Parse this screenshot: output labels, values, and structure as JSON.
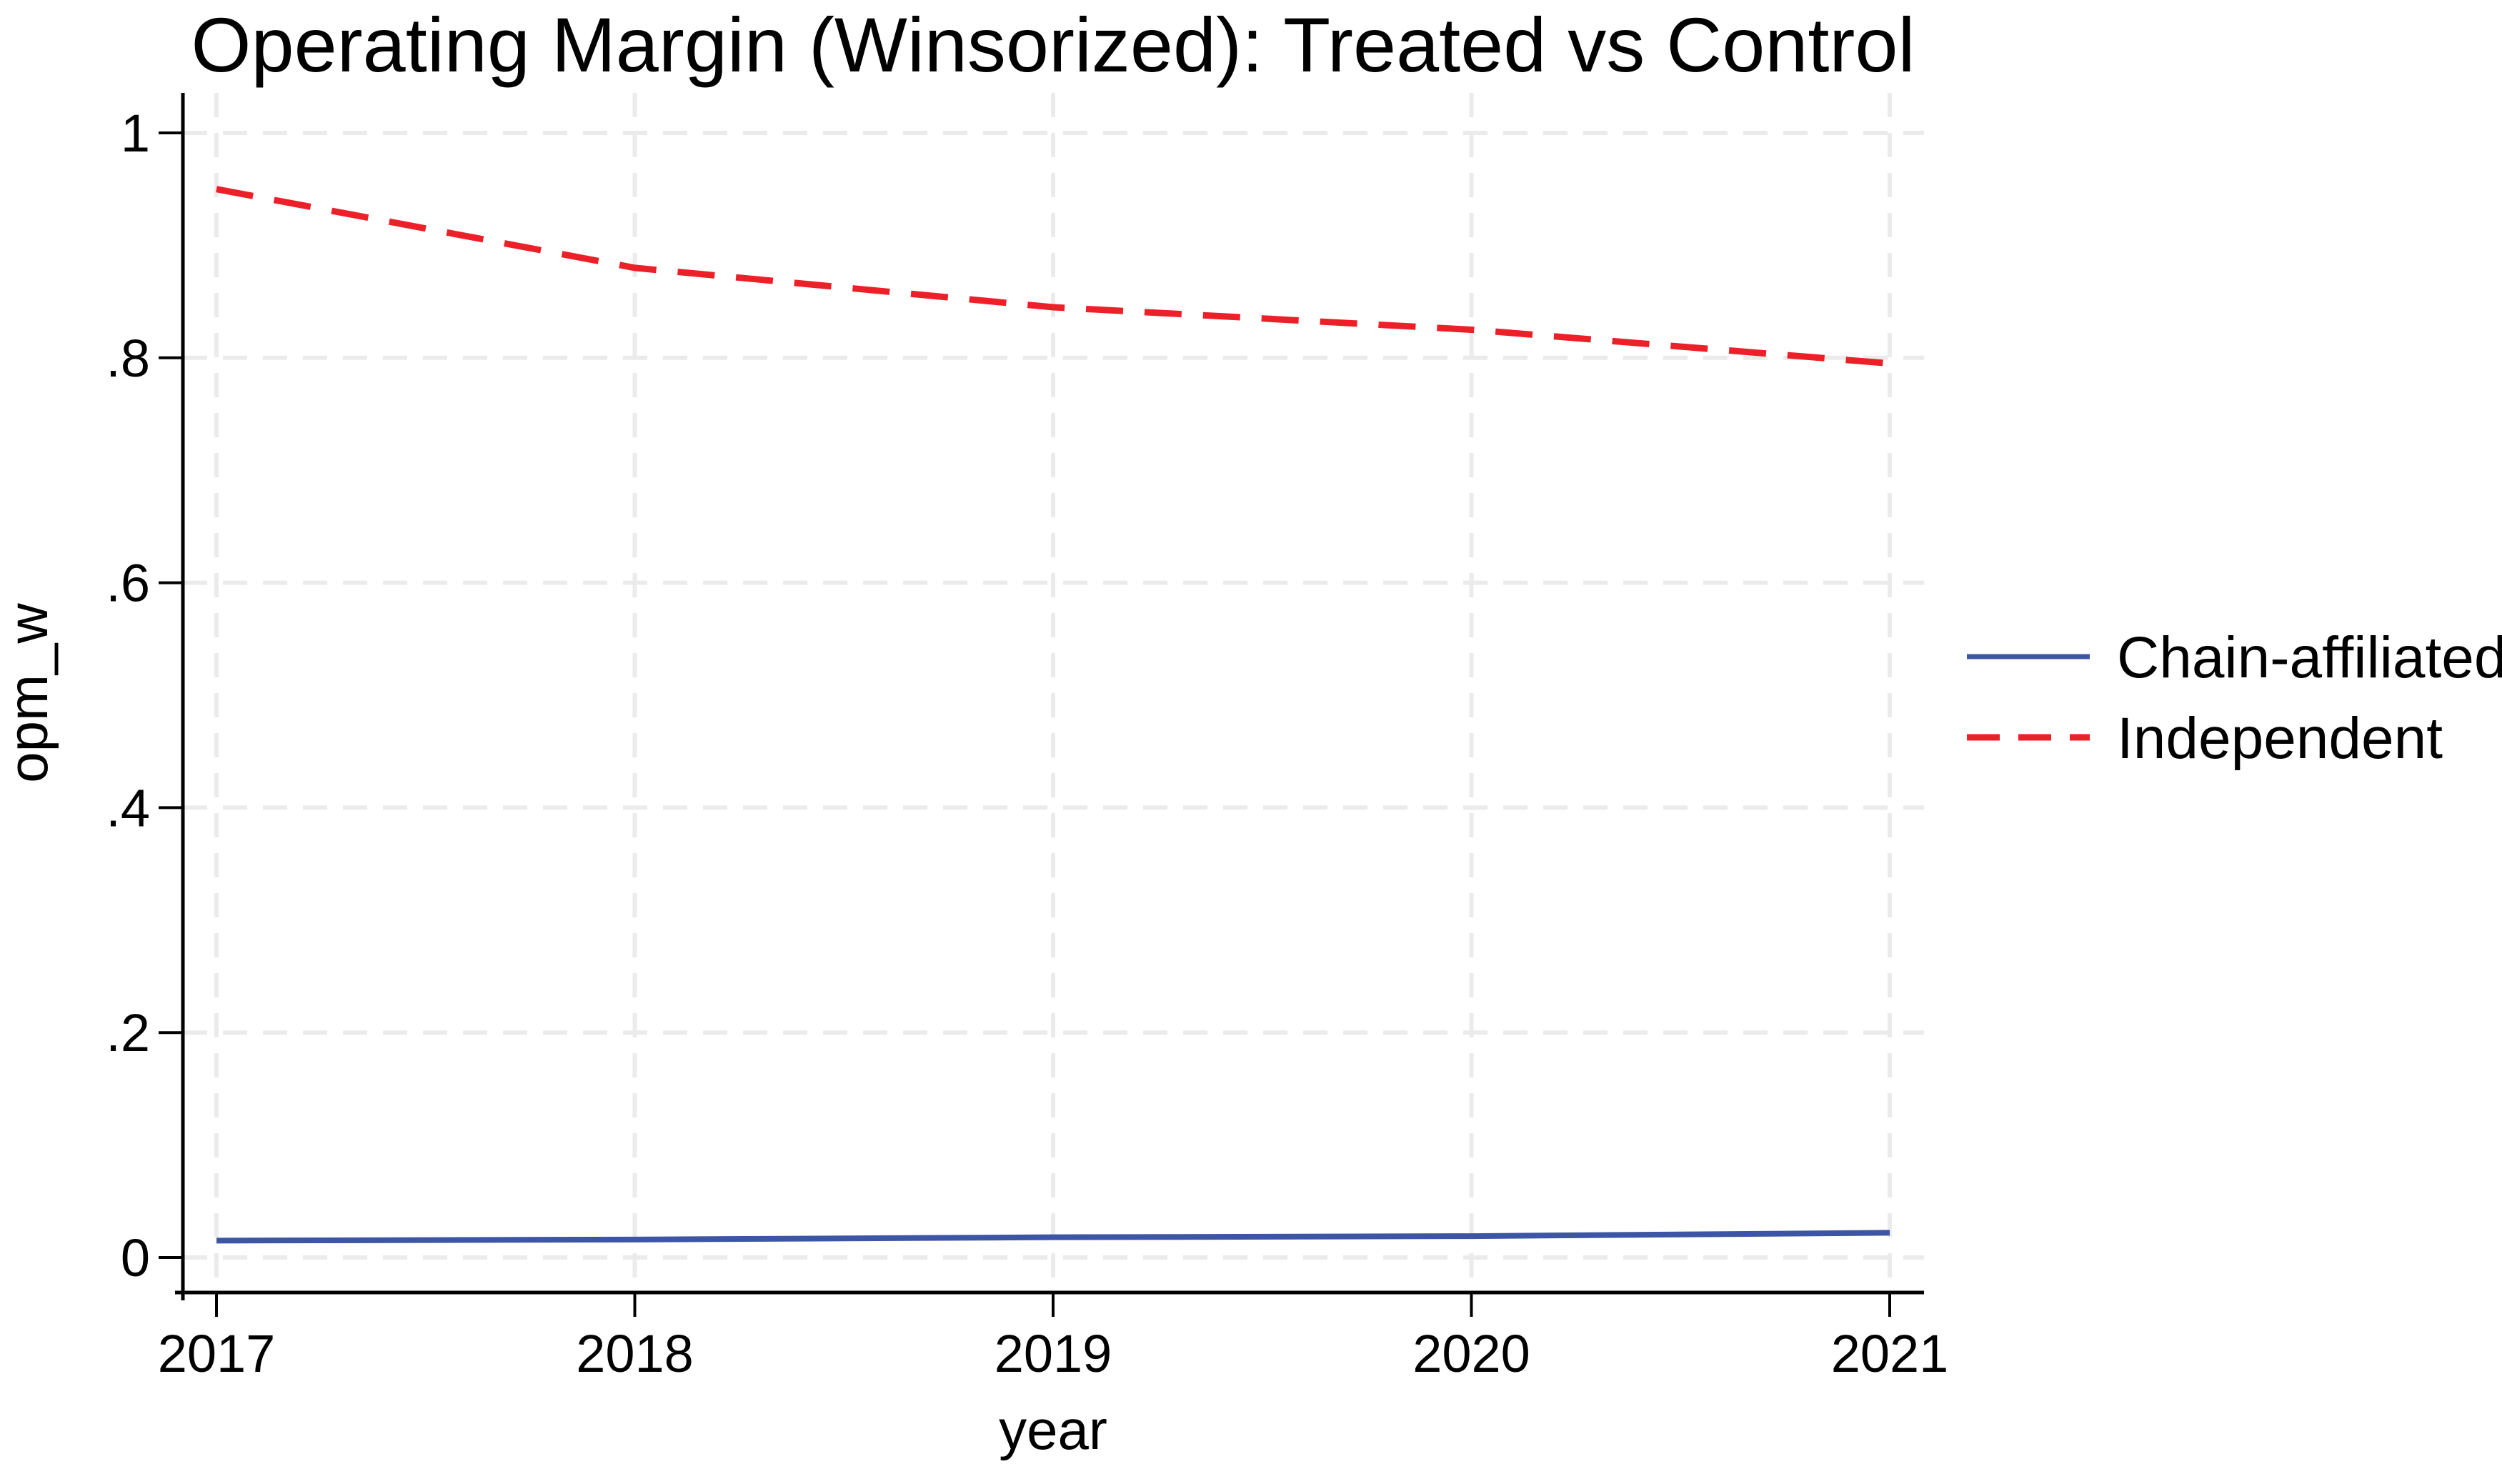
{
  "chart_data": {
    "type": "line",
    "title": "Operating Margin (Winsorized): Treated vs Control",
    "xlabel": "year",
    "ylabel": "opm_w",
    "x": [
      2017,
      2018,
      2019,
      2020,
      2021
    ],
    "x_tick_labels": [
      "2017",
      "2018",
      "2019",
      "2020",
      "2021"
    ],
    "y_ticks": [
      {
        "value": 0,
        "label": "0"
      },
      {
        "value": 0.2,
        "label": ".2"
      },
      {
        "value": 0.4,
        "label": ".4"
      },
      {
        "value": 0.6,
        "label": ".6"
      },
      {
        "value": 0.8,
        "label": ".8"
      },
      {
        "value": 1,
        "label": "1"
      }
    ],
    "ylim": [
      0,
      1
    ],
    "xlim": [
      2017,
      2021
    ],
    "grid": true,
    "grid_color": "#ebebeb",
    "axis_color": "#000000",
    "legend_position": "right-outside",
    "series": [
      {
        "name": "Chain-affiliated",
        "color": "#3d55a5",
        "style": "solid",
        "values": [
          0.015,
          0.016,
          0.018,
          0.019,
          0.022
        ]
      },
      {
        "name": "Independent",
        "color": "#ec2028",
        "style": "dashed",
        "values": [
          0.95,
          0.88,
          0.845,
          0.825,
          0.795
        ]
      }
    ]
  }
}
